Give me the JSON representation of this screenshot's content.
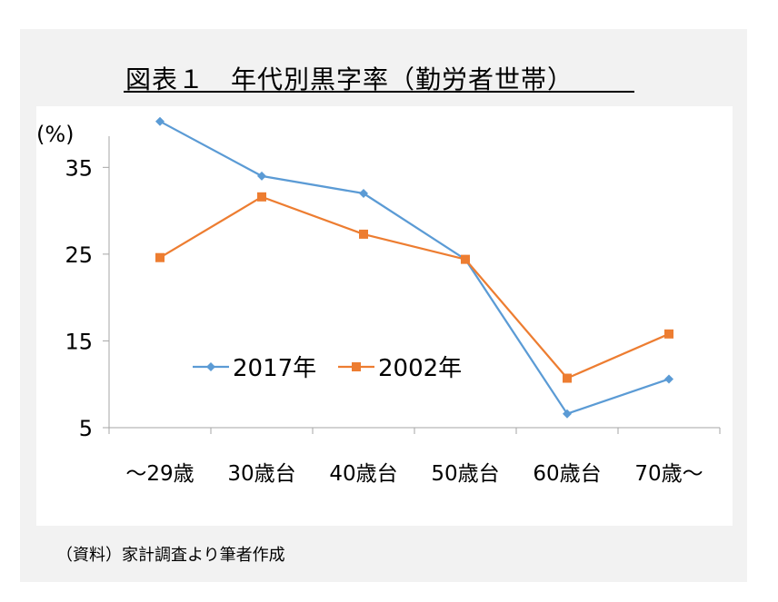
{
  "page_title": "図表１　年代別黒字率（勤労者世帯）",
  "source_note": "（資料）家計調査より筆者作成",
  "chart_data": {
    "type": "line",
    "title": "図表１　年代別黒字率（勤労者世帯）",
    "ylabel": "(%)",
    "xlabel": "",
    "categories": [
      "～29歳",
      "30歳台",
      "40歳台",
      "50歳台",
      "60歳台",
      "70歳～"
    ],
    "ylim": [
      5,
      41
    ],
    "yticks": [
      5,
      15,
      25,
      35
    ],
    "grid": false,
    "legend_position": "inside-lower-left",
    "series": [
      {
        "name": "2017年",
        "color": "#5b9bd5",
        "marker": "diamond",
        "values": [
          40.3,
          34.0,
          32.0,
          24.4,
          6.6,
          10.6
        ]
      },
      {
        "name": "2002年",
        "color": "#ed7d31",
        "marker": "square",
        "values": [
          24.6,
          31.6,
          27.3,
          24.4,
          10.7,
          15.8
        ]
      }
    ]
  }
}
